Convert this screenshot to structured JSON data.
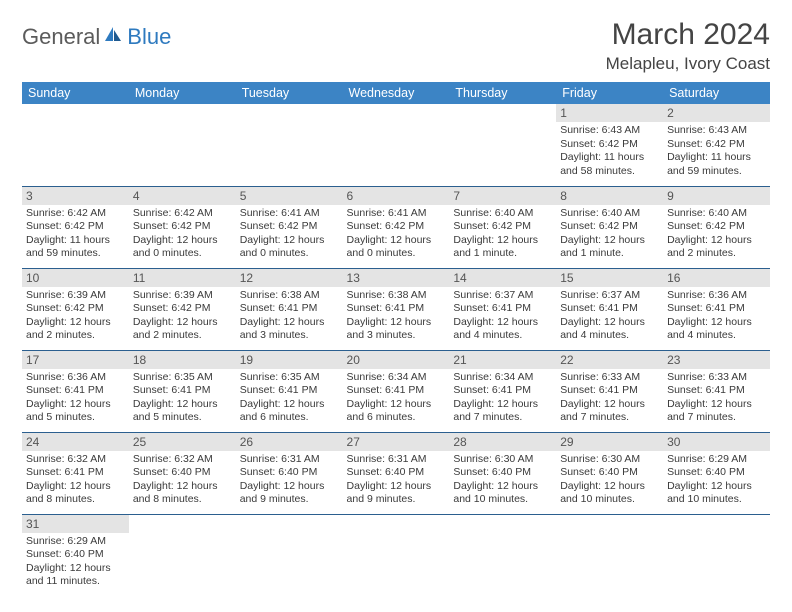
{
  "brand": {
    "part1": "General",
    "part2": "Blue"
  },
  "title": "March 2024",
  "location": "Melapleu, Ivory Coast",
  "colors": {
    "header_bg": "#3c84c5",
    "header_fg": "#ffffff",
    "daynum_bg": "#e4e4e4",
    "cell_border": "#2b5f8f",
    "brand_blue": "#2e7abf",
    "brand_gray": "#5b5b5b",
    "body_text": "#3a3a3a"
  },
  "dayHeaders": [
    "Sunday",
    "Monday",
    "Tuesday",
    "Wednesday",
    "Thursday",
    "Friday",
    "Saturday"
  ],
  "weeks": [
    [
      null,
      null,
      null,
      null,
      null,
      {
        "d": "1",
        "sr": "Sunrise: 6:43 AM",
        "ss": "Sunset: 6:42 PM",
        "dl": "Daylight: 11 hours and 58 minutes."
      },
      {
        "d": "2",
        "sr": "Sunrise: 6:43 AM",
        "ss": "Sunset: 6:42 PM",
        "dl": "Daylight: 11 hours and 59 minutes."
      }
    ],
    [
      {
        "d": "3",
        "sr": "Sunrise: 6:42 AM",
        "ss": "Sunset: 6:42 PM",
        "dl": "Daylight: 11 hours and 59 minutes."
      },
      {
        "d": "4",
        "sr": "Sunrise: 6:42 AM",
        "ss": "Sunset: 6:42 PM",
        "dl": "Daylight: 12 hours and 0 minutes."
      },
      {
        "d": "5",
        "sr": "Sunrise: 6:41 AM",
        "ss": "Sunset: 6:42 PM",
        "dl": "Daylight: 12 hours and 0 minutes."
      },
      {
        "d": "6",
        "sr": "Sunrise: 6:41 AM",
        "ss": "Sunset: 6:42 PM",
        "dl": "Daylight: 12 hours and 0 minutes."
      },
      {
        "d": "7",
        "sr": "Sunrise: 6:40 AM",
        "ss": "Sunset: 6:42 PM",
        "dl": "Daylight: 12 hours and 1 minute."
      },
      {
        "d": "8",
        "sr": "Sunrise: 6:40 AM",
        "ss": "Sunset: 6:42 PM",
        "dl": "Daylight: 12 hours and 1 minute."
      },
      {
        "d": "9",
        "sr": "Sunrise: 6:40 AM",
        "ss": "Sunset: 6:42 PM",
        "dl": "Daylight: 12 hours and 2 minutes."
      }
    ],
    [
      {
        "d": "10",
        "sr": "Sunrise: 6:39 AM",
        "ss": "Sunset: 6:42 PM",
        "dl": "Daylight: 12 hours and 2 minutes."
      },
      {
        "d": "11",
        "sr": "Sunrise: 6:39 AM",
        "ss": "Sunset: 6:42 PM",
        "dl": "Daylight: 12 hours and 2 minutes."
      },
      {
        "d": "12",
        "sr": "Sunrise: 6:38 AM",
        "ss": "Sunset: 6:41 PM",
        "dl": "Daylight: 12 hours and 3 minutes."
      },
      {
        "d": "13",
        "sr": "Sunrise: 6:38 AM",
        "ss": "Sunset: 6:41 PM",
        "dl": "Daylight: 12 hours and 3 minutes."
      },
      {
        "d": "14",
        "sr": "Sunrise: 6:37 AM",
        "ss": "Sunset: 6:41 PM",
        "dl": "Daylight: 12 hours and 4 minutes."
      },
      {
        "d": "15",
        "sr": "Sunrise: 6:37 AM",
        "ss": "Sunset: 6:41 PM",
        "dl": "Daylight: 12 hours and 4 minutes."
      },
      {
        "d": "16",
        "sr": "Sunrise: 6:36 AM",
        "ss": "Sunset: 6:41 PM",
        "dl": "Daylight: 12 hours and 4 minutes."
      }
    ],
    [
      {
        "d": "17",
        "sr": "Sunrise: 6:36 AM",
        "ss": "Sunset: 6:41 PM",
        "dl": "Daylight: 12 hours and 5 minutes."
      },
      {
        "d": "18",
        "sr": "Sunrise: 6:35 AM",
        "ss": "Sunset: 6:41 PM",
        "dl": "Daylight: 12 hours and 5 minutes."
      },
      {
        "d": "19",
        "sr": "Sunrise: 6:35 AM",
        "ss": "Sunset: 6:41 PM",
        "dl": "Daylight: 12 hours and 6 minutes."
      },
      {
        "d": "20",
        "sr": "Sunrise: 6:34 AM",
        "ss": "Sunset: 6:41 PM",
        "dl": "Daylight: 12 hours and 6 minutes."
      },
      {
        "d": "21",
        "sr": "Sunrise: 6:34 AM",
        "ss": "Sunset: 6:41 PM",
        "dl": "Daylight: 12 hours and 7 minutes."
      },
      {
        "d": "22",
        "sr": "Sunrise: 6:33 AM",
        "ss": "Sunset: 6:41 PM",
        "dl": "Daylight: 12 hours and 7 minutes."
      },
      {
        "d": "23",
        "sr": "Sunrise: 6:33 AM",
        "ss": "Sunset: 6:41 PM",
        "dl": "Daylight: 12 hours and 7 minutes."
      }
    ],
    [
      {
        "d": "24",
        "sr": "Sunrise: 6:32 AM",
        "ss": "Sunset: 6:41 PM",
        "dl": "Daylight: 12 hours and 8 minutes."
      },
      {
        "d": "25",
        "sr": "Sunrise: 6:32 AM",
        "ss": "Sunset: 6:40 PM",
        "dl": "Daylight: 12 hours and 8 minutes."
      },
      {
        "d": "26",
        "sr": "Sunrise: 6:31 AM",
        "ss": "Sunset: 6:40 PM",
        "dl": "Daylight: 12 hours and 9 minutes."
      },
      {
        "d": "27",
        "sr": "Sunrise: 6:31 AM",
        "ss": "Sunset: 6:40 PM",
        "dl": "Daylight: 12 hours and 9 minutes."
      },
      {
        "d": "28",
        "sr": "Sunrise: 6:30 AM",
        "ss": "Sunset: 6:40 PM",
        "dl": "Daylight: 12 hours and 10 minutes."
      },
      {
        "d": "29",
        "sr": "Sunrise: 6:30 AM",
        "ss": "Sunset: 6:40 PM",
        "dl": "Daylight: 12 hours and 10 minutes."
      },
      {
        "d": "30",
        "sr": "Sunrise: 6:29 AM",
        "ss": "Sunset: 6:40 PM",
        "dl": "Daylight: 12 hours and 10 minutes."
      }
    ],
    [
      {
        "d": "31",
        "sr": "Sunrise: 6:29 AM",
        "ss": "Sunset: 6:40 PM",
        "dl": "Daylight: 12 hours and 11 minutes."
      },
      null,
      null,
      null,
      null,
      null,
      null
    ]
  ]
}
